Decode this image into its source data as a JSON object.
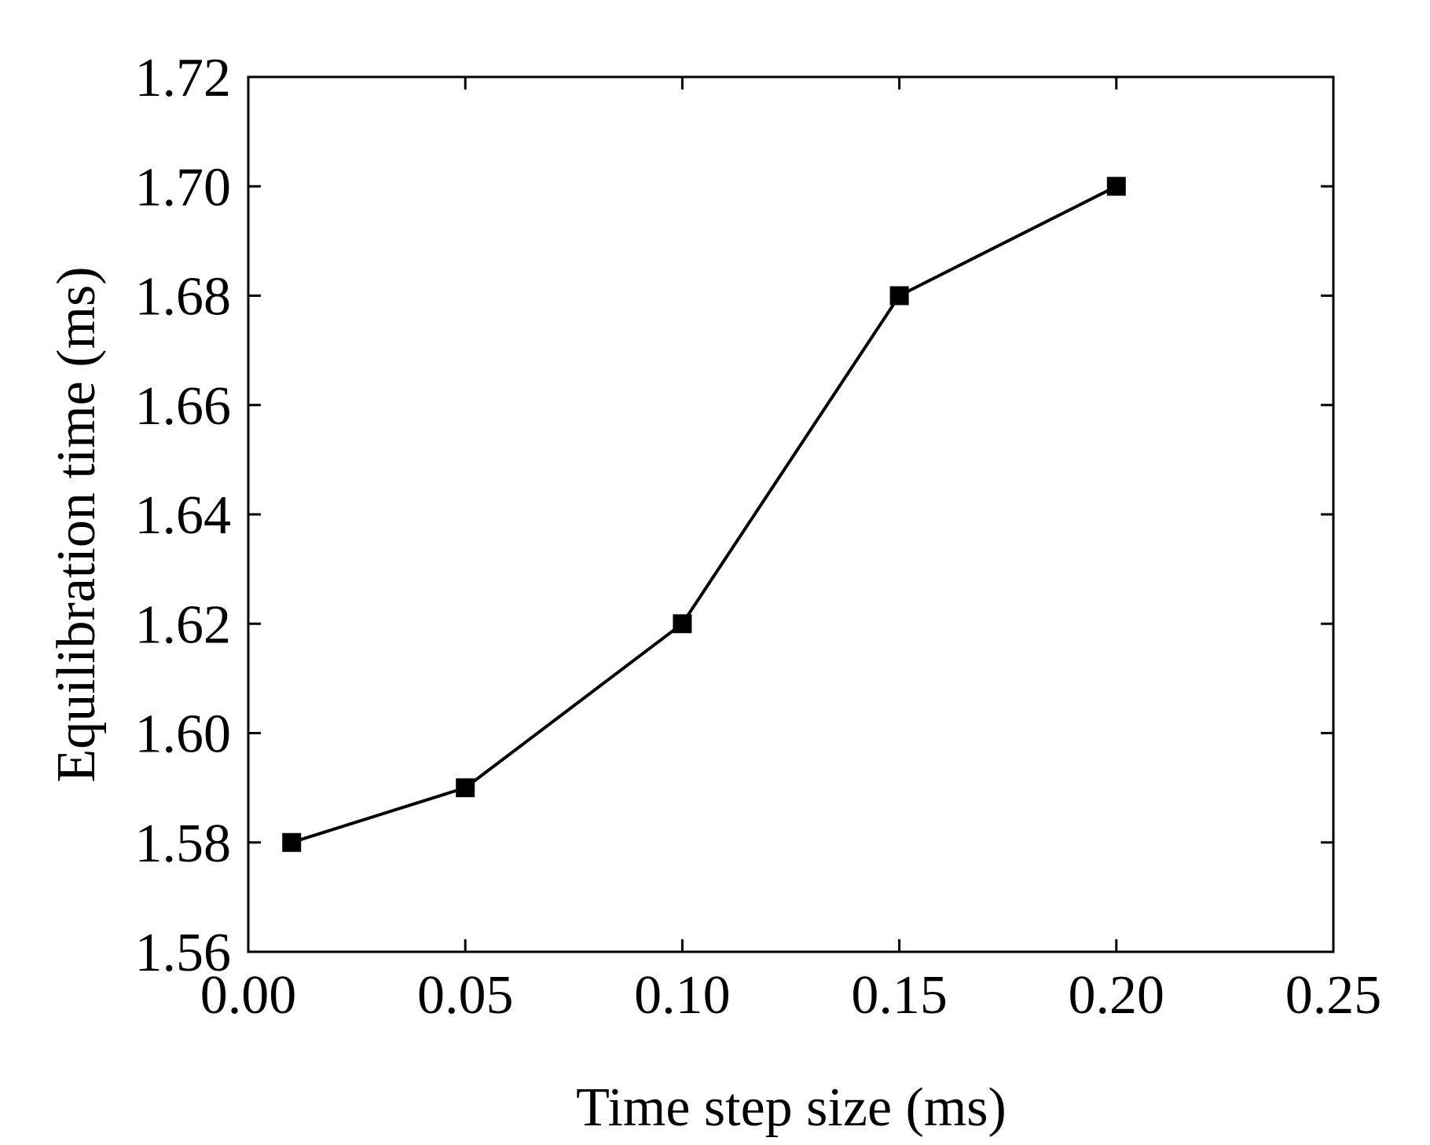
{
  "chart_data": {
    "type": "line",
    "title": "",
    "xlabel": "Time step size (ms)",
    "ylabel": "Equilibration time (ms)",
    "xlim": [
      0.0,
      0.25
    ],
    "ylim": [
      1.56,
      1.72
    ],
    "xticks": [
      0.0,
      0.05,
      0.1,
      0.15,
      0.2,
      0.25
    ],
    "xtick_labels": [
      "0.00",
      "0.05",
      "0.10",
      "0.15",
      "0.20",
      "0.25"
    ],
    "yticks": [
      1.56,
      1.58,
      1.6,
      1.62,
      1.64,
      1.66,
      1.68,
      1.7,
      1.72
    ],
    "ytick_labels": [
      "1.56",
      "1.58",
      "1.60",
      "1.62",
      "1.64",
      "1.66",
      "1.68",
      "1.70",
      "1.72"
    ],
    "grid": false,
    "series": [
      {
        "name": "Equilibration time",
        "marker": "square",
        "color": "#000000",
        "x": [
          0.01,
          0.05,
          0.1,
          0.15,
          0.2
        ],
        "y": [
          1.58,
          1.59,
          1.62,
          1.68,
          1.7
        ]
      }
    ]
  }
}
